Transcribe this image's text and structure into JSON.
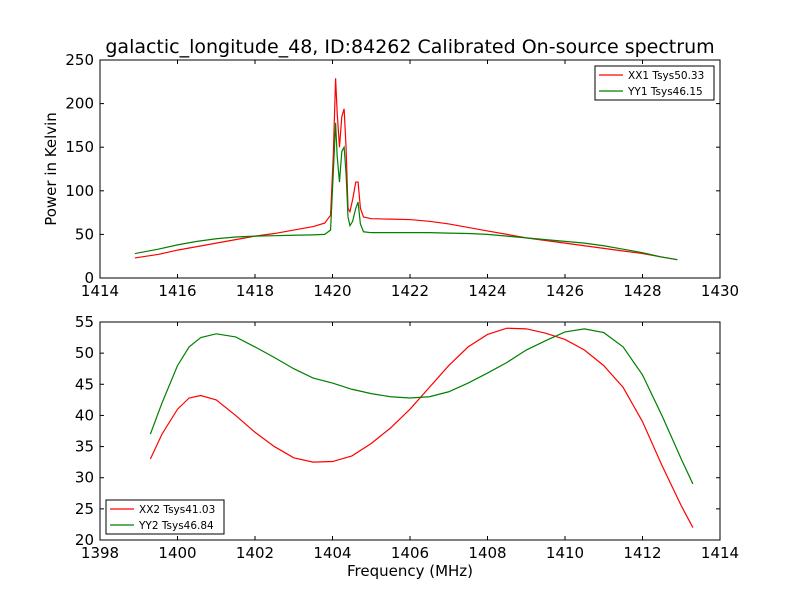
{
  "chart_data": [
    {
      "type": "line",
      "title": "galactic_longitude_48, ID:84262 Calibrated On-source spectrum",
      "xlabel": "",
      "ylabel": "Power in Kelvin",
      "xlim": [
        1414,
        1430
      ],
      "ylim": [
        0,
        250
      ],
      "xticks": [
        "1414",
        "1416",
        "1418",
        "1420",
        "1422",
        "1424",
        "1426",
        "1428",
        "1430"
      ],
      "yticks": [
        "0",
        "50",
        "100",
        "150",
        "200",
        "250"
      ],
      "legend_position": "top-right",
      "grid": false,
      "series": [
        {
          "name": "XX1 Tsys50.33",
          "color": "#ff0000",
          "x": [
            1414.9,
            1415.5,
            1416,
            1416.5,
            1417,
            1417.5,
            1418,
            1418.5,
            1419,
            1419.5,
            1419.8,
            1419.95,
            1420.02,
            1420.08,
            1420.12,
            1420.18,
            1420.24,
            1420.3,
            1420.35,
            1420.4,
            1420.45,
            1420.52,
            1420.6,
            1420.66,
            1420.72,
            1420.8,
            1421,
            1421.5,
            1422,
            1422.5,
            1423,
            1423.5,
            1424,
            1424.5,
            1425,
            1425.5,
            1426,
            1426.5,
            1427,
            1427.5,
            1428,
            1428.5,
            1428.9
          ],
          "y": [
            23,
            27,
            32,
            36,
            40,
            44,
            48,
            51,
            55,
            59,
            63,
            72,
            140,
            229,
            190,
            150,
            185,
            194,
            150,
            80,
            76,
            90,
            110,
            110,
            80,
            70,
            68,
            67.5,
            67,
            65,
            62,
            58,
            54,
            50,
            46,
            43,
            40,
            37,
            34,
            31,
            28,
            24,
            21
          ]
        },
        {
          "name": "YY1 Tsys46.15",
          "color": "#008000",
          "x": [
            1414.9,
            1415.5,
            1416,
            1416.5,
            1417,
            1417.5,
            1418,
            1418.5,
            1419,
            1419.5,
            1419.8,
            1419.95,
            1420.02,
            1420.08,
            1420.12,
            1420.18,
            1420.24,
            1420.3,
            1420.35,
            1420.4,
            1420.45,
            1420.52,
            1420.6,
            1420.66,
            1420.72,
            1420.8,
            1421,
            1421.5,
            1422,
            1422.5,
            1423,
            1423.5,
            1424,
            1424.5,
            1425,
            1425.5,
            1426,
            1426.5,
            1427,
            1427.5,
            1428,
            1428.5,
            1428.9
          ],
          "y": [
            28,
            33,
            38,
            42,
            45,
            47,
            48,
            48.5,
            49,
            49.5,
            50,
            55,
            120,
            178,
            140,
            110,
            145,
            150,
            120,
            70,
            60,
            65,
            80,
            87,
            62,
            53,
            52,
            52,
            52,
            52,
            51.5,
            51,
            50,
            48,
            46,
            44,
            42,
            40,
            37,
            33,
            29,
            24,
            21
          ]
        }
      ]
    },
    {
      "type": "line",
      "title": "",
      "xlabel": "Frequency (MHz)",
      "ylabel": "",
      "xlim": [
        1398,
        1414
      ],
      "ylim": [
        20,
        55
      ],
      "xticks": [
        "1398",
        "1400",
        "1402",
        "1404",
        "1406",
        "1408",
        "1410",
        "1412",
        "1414"
      ],
      "yticks": [
        "20",
        "25",
        "30",
        "35",
        "40",
        "45",
        "50",
        "55"
      ],
      "legend_position": "bottom-left",
      "grid": false,
      "series": [
        {
          "name": "XX2 Tsys41.03",
          "color": "#ff0000",
          "x": [
            1399.3,
            1399.6,
            1400,
            1400.3,
            1400.6,
            1401,
            1401.5,
            1402,
            1402.5,
            1403,
            1403.5,
            1404,
            1404.5,
            1405,
            1405.5,
            1406,
            1406.5,
            1407,
            1407.5,
            1408,
            1408.5,
            1409,
            1409.5,
            1410,
            1410.5,
            1411,
            1411.5,
            1412,
            1412.5,
            1413,
            1413.3
          ],
          "y": [
            33,
            37,
            41,
            42.8,
            43.2,
            42.5,
            40,
            37.3,
            35,
            33.2,
            32.5,
            32.6,
            33.5,
            35.5,
            38,
            41,
            44.5,
            48,
            51,
            53,
            54,
            53.9,
            53.2,
            52.2,
            50.5,
            48,
            44.5,
            39,
            32,
            25.5,
            22
          ]
        },
        {
          "name": "YY2 Tsys46.84",
          "color": "#008000",
          "x": [
            1399.3,
            1399.6,
            1400,
            1400.3,
            1400.6,
            1401,
            1401.5,
            1402,
            1402.5,
            1403,
            1403.5,
            1404,
            1404.5,
            1405,
            1405.5,
            1406,
            1406.5,
            1407,
            1407.5,
            1408,
            1408.5,
            1409,
            1409.5,
            1410,
            1410.5,
            1411,
            1411.5,
            1412,
            1412.5,
            1413,
            1413.3
          ],
          "y": [
            37,
            42,
            48,
            51,
            52.5,
            53.1,
            52.6,
            51,
            49.3,
            47.5,
            46,
            45.2,
            44.2,
            43.5,
            43,
            42.8,
            43,
            43.8,
            45.2,
            46.8,
            48.5,
            50.5,
            52,
            53.4,
            53.9,
            53.3,
            51,
            46.5,
            40,
            33,
            29
          ]
        }
      ]
    }
  ]
}
